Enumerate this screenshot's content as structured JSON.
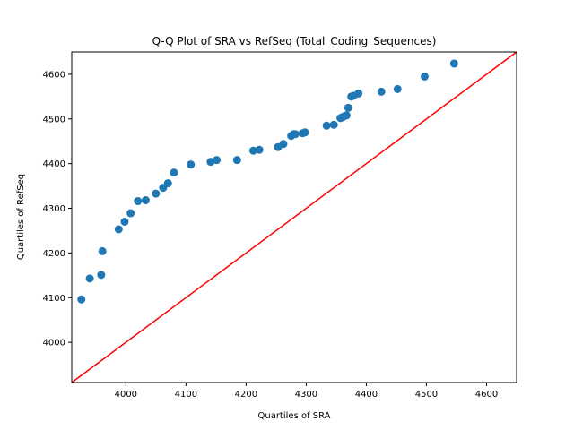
{
  "chart_data": {
    "type": "scatter",
    "title": "Q-Q Plot of SRA vs RefSeq (Total_Coding_Sequences)",
    "xlabel": "Quartiles of SRA",
    "ylabel": "Quartiles of RefSeq",
    "xlim": [
      3910,
      4650
    ],
    "ylim": [
      3910,
      4650
    ],
    "xticks": [
      4000,
      4100,
      4200,
      4300,
      4400,
      4500,
      4600
    ],
    "yticks": [
      4000,
      4100,
      4200,
      4300,
      4400,
      4500,
      4600
    ],
    "grid": false,
    "marker_color": "#1f77b4",
    "reference_line": {
      "color": "#ff0000",
      "from": [
        3910,
        3910
      ],
      "to": [
        4650,
        4650
      ]
    },
    "points": [
      [
        3926,
        4096
      ],
      [
        3940,
        4143
      ],
      [
        3959,
        4151
      ],
      [
        3961,
        4204
      ],
      [
        3988,
        4253
      ],
      [
        3998,
        4270
      ],
      [
        4008,
        4289
      ],
      [
        4020,
        4316
      ],
      [
        4033,
        4318
      ],
      [
        4050,
        4333
      ],
      [
        4062,
        4346
      ],
      [
        4070,
        4356
      ],
      [
        4080,
        4380
      ],
      [
        4108,
        4398
      ],
      [
        4141,
        4404
      ],
      [
        4151,
        4408
      ],
      [
        4185,
        4408
      ],
      [
        4212,
        4429
      ],
      [
        4222,
        4431
      ],
      [
        4253,
        4437
      ],
      [
        4262,
        4444
      ],
      [
        4275,
        4462
      ],
      [
        4279,
        4466
      ],
      [
        4282,
        4466
      ],
      [
        4294,
        4468
      ],
      [
        4298,
        4470
      ],
      [
        4334,
        4485
      ],
      [
        4346,
        4487
      ],
      [
        4357,
        4502
      ],
      [
        4362,
        4505
      ],
      [
        4367,
        4508
      ],
      [
        4370,
        4525
      ],
      [
        4375,
        4550
      ],
      [
        4379,
        4552
      ],
      [
        4387,
        4557
      ],
      [
        4425,
        4561
      ],
      [
        4452,
        4567
      ],
      [
        4497,
        4595
      ],
      [
        4546,
        4624
      ]
    ]
  }
}
